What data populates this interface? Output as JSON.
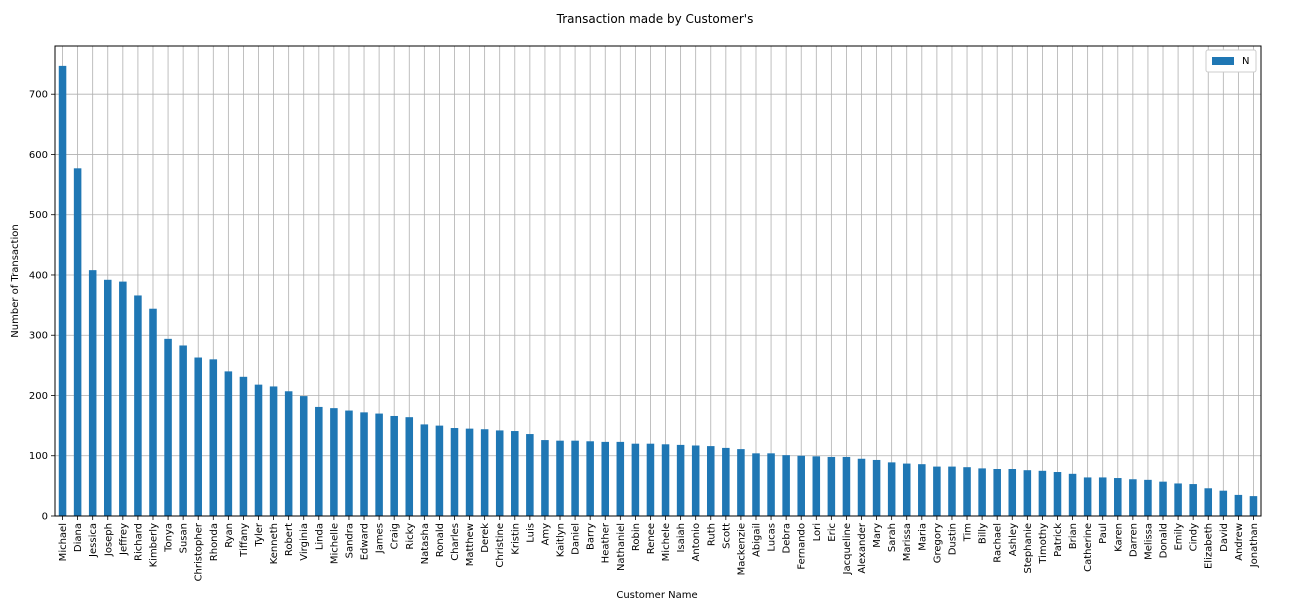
{
  "chart_data": {
    "type": "bar",
    "title": "Transaction made by Customer's",
    "xlabel": "Customer Name",
    "ylabel": "Number of Transaction",
    "ylim": [
      0,
      780
    ],
    "yticks": [
      0,
      100,
      200,
      300,
      400,
      500,
      600,
      700
    ],
    "grid": true,
    "legend_position": "top-right",
    "bar_color": "#1f77b4",
    "categories": [
      "Michael",
      "Diana",
      "Jessica",
      "Joseph",
      "Jeffrey",
      "Richard",
      "Kimberly",
      "Tonya",
      "Susan",
      "Christopher",
      "Rhonda",
      "Ryan",
      "Tiffany",
      "Tyler",
      "Kenneth",
      "Robert",
      "Virginia",
      "Linda",
      "Michelle",
      "Sandra",
      "Edward",
      "James",
      "Craig",
      "Ricky",
      "Natasha",
      "Ronald",
      "Charles",
      "Matthew",
      "Derek",
      "Christine",
      "Kristin",
      "Luis",
      "Amy",
      "Kaitlyn",
      "Daniel",
      "Barry",
      "Heather",
      "Nathaniel",
      "Robin",
      "Renee",
      "Michele",
      "Isaiah",
      "Antonio",
      "Ruth",
      "Scott",
      "Mackenzie",
      "Abigail",
      "Lucas",
      "Debra",
      "Fernando",
      "Lori",
      "Eric",
      "Jacqueline",
      "Alexander",
      "Mary",
      "Sarah",
      "Marissa",
      "Maria",
      "Gregory",
      "Dustin",
      "Tim",
      "Billy",
      "Rachael",
      "Ashley",
      "Stephanie",
      "Timothy",
      "Patrick",
      "Brian",
      "Catherine",
      "Paul",
      "Karen",
      "Darren",
      "Melissa",
      "Donald",
      "Emily",
      "Cindy",
      "Elizabeth",
      "David",
      "Andrew",
      "Jonathan"
    ],
    "series": [
      {
        "name": "N",
        "values": [
          747,
          577,
          408,
          392,
          389,
          366,
          344,
          294,
          283,
          263,
          260,
          240,
          231,
          218,
          215,
          207,
          199,
          181,
          179,
          175,
          172,
          170,
          166,
          164,
          152,
          150,
          146,
          145,
          144,
          142,
          141,
          136,
          126,
          125,
          125,
          124,
          123,
          123,
          120,
          120,
          119,
          118,
          117,
          116,
          113,
          111,
          104,
          104,
          101,
          100,
          99,
          98,
          98,
          95,
          93,
          89,
          87,
          86,
          82,
          82,
          81,
          79,
          78,
          78,
          76,
          75,
          73,
          70,
          64,
          64,
          63,
          61,
          60,
          57,
          54,
          53,
          46,
          42,
          35,
          33
        ]
      }
    ]
  }
}
